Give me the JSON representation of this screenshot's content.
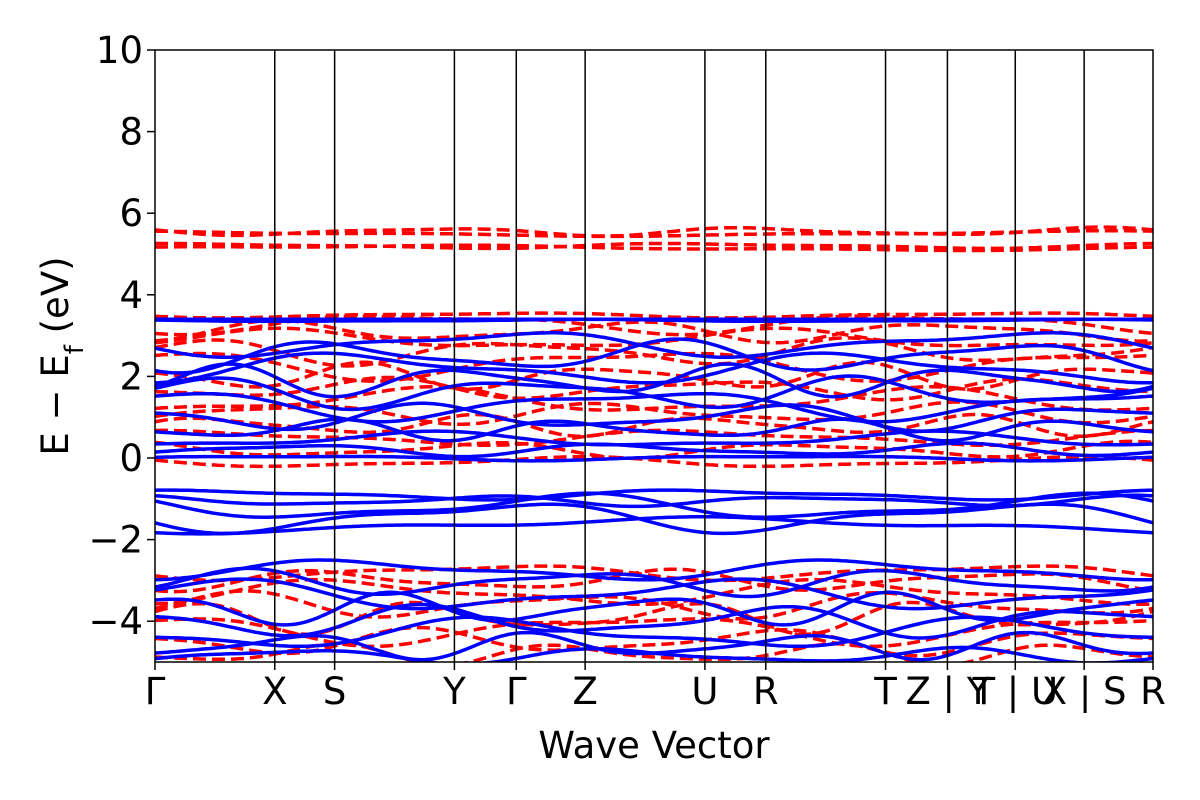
{
  "chart_data": {
    "type": "line",
    "title": "",
    "xlabel": "Wave Vector",
    "ylabel": {
      "main": "E − E",
      "sub": "f",
      "unit": " (eV)"
    },
    "ylim": [
      -5,
      10
    ],
    "grid": false,
    "legend": "none",
    "yticks": [
      {
        "value": 10,
        "label": "10"
      },
      {
        "value": 8,
        "label": "8"
      },
      {
        "value": 6,
        "label": "6"
      },
      {
        "value": 4,
        "label": "4"
      },
      {
        "value": 2,
        "label": "2"
      },
      {
        "value": 0,
        "label": "0"
      },
      {
        "value": -2,
        "label": "−2"
      },
      {
        "value": -4,
        "label": "−4"
      }
    ],
    "kpoints": [
      {
        "x": 0.0,
        "label": "Γ"
      },
      {
        "x": 0.12,
        "label": "X"
      },
      {
        "x": 0.18,
        "label": "S"
      },
      {
        "x": 0.3,
        "label": "Y"
      },
      {
        "x": 0.362,
        "label": "Γ"
      },
      {
        "x": 0.431,
        "label": "Z"
      },
      {
        "x": 0.551,
        "label": "U"
      },
      {
        "x": 0.612,
        "label": "R"
      },
      {
        "x": 0.732,
        "label": "T"
      },
      {
        "x": 0.794,
        "label": "Z | Y"
      },
      {
        "x": 0.862,
        "label": "T | U"
      },
      {
        "x": 0.931,
        "label": "X | S"
      },
      {
        "x": 1.0,
        "label": "R"
      }
    ],
    "series": [
      {
        "style": "dashed",
        "color": "#ff0000",
        "bands": [
          {
            "base": 5.15,
            "amp": 0.05,
            "freq": 1
          },
          {
            "base": 5.2,
            "amp": 0.05,
            "freq": 2
          },
          {
            "base": 5.5,
            "amp": 0.05,
            "freq": 1
          },
          {
            "base": 5.55,
            "amp": 0.08,
            "freq": 3
          },
          {
            "base": 3.5,
            "amp": 0.05,
            "freq": 2
          },
          {
            "base": 3.3,
            "amp": 0.2,
            "freq": 2
          },
          {
            "base": 3.1,
            "amp": 0.2,
            "freq": 3
          },
          {
            "base": 2.9,
            "amp": 0.2,
            "freq": 2
          },
          {
            "base": 2.6,
            "amp": 0.25,
            "freq": 3
          },
          {
            "base": 2.3,
            "amp": 0.3,
            "freq": 2
          },
          {
            "base": 2.0,
            "amp": 0.25,
            "freq": 4
          },
          {
            "base": 1.7,
            "amp": 0.2,
            "freq": 3
          },
          {
            "base": 1.4,
            "amp": 0.25,
            "freq": 2
          },
          {
            "base": 1.1,
            "amp": 0.2,
            "freq": 3
          },
          {
            "base": 0.8,
            "amp": 0.2,
            "freq": 4
          },
          {
            "base": 0.5,
            "amp": 0.15,
            "freq": 2
          },
          {
            "base": 0.2,
            "amp": 0.15,
            "freq": 3
          },
          {
            "base": -0.1,
            "amp": 0.1,
            "freq": 2
          },
          {
            "base": -2.8,
            "amp": 0.15,
            "freq": 2
          },
          {
            "base": -3.0,
            "amp": 0.2,
            "freq": 3
          },
          {
            "base": -3.3,
            "amp": 0.25,
            "freq": 2
          },
          {
            "base": -3.6,
            "amp": 0.25,
            "freq": 3
          },
          {
            "base": -3.9,
            "amp": 0.3,
            "freq": 4
          },
          {
            "base": -4.2,
            "amp": 0.3,
            "freq": 2
          },
          {
            "base": -4.5,
            "amp": 0.25,
            "freq": 3
          },
          {
            "base": -4.8,
            "amp": 0.2,
            "freq": 4
          }
        ]
      },
      {
        "style": "solid",
        "color": "#0000ff",
        "bands": [
          {
            "base": 3.4,
            "amp": 0.0,
            "freq": 1
          },
          {
            "base": 3.37,
            "amp": 0.02,
            "freq": 2
          },
          {
            "base": 2.8,
            "amp": 0.25,
            "freq": 2
          },
          {
            "base": 2.5,
            "amp": 0.3,
            "freq": 3
          },
          {
            "base": 2.2,
            "amp": 0.3,
            "freq": 2
          },
          {
            "base": 1.9,
            "amp": 0.3,
            "freq": 4
          },
          {
            "base": 1.6,
            "amp": 0.3,
            "freq": 3
          },
          {
            "base": 1.3,
            "amp": 0.3,
            "freq": 2
          },
          {
            "base": 1.0,
            "amp": 0.25,
            "freq": 3
          },
          {
            "base": 0.7,
            "amp": 0.2,
            "freq": 4
          },
          {
            "base": 0.45,
            "amp": 0.15,
            "freq": 2
          },
          {
            "base": 0.2,
            "amp": 0.12,
            "freq": 3
          },
          {
            "base": 0.0,
            "amp": 0.05,
            "freq": 2
          },
          {
            "base": -0.9,
            "amp": 0.1,
            "freq": 2
          },
          {
            "base": -1.05,
            "amp": 0.1,
            "freq": 3
          },
          {
            "base": -1.2,
            "amp": 0.25,
            "freq": 2
          },
          {
            "base": -1.45,
            "amp": 0.3,
            "freq": 2
          },
          {
            "base": -1.65,
            "amp": 0.15,
            "freq": 1
          },
          {
            "base": -2.75,
            "amp": 0.2,
            "freq": 2
          },
          {
            "base": -3.05,
            "amp": 0.25,
            "freq": 3
          },
          {
            "base": -3.35,
            "amp": 0.3,
            "freq": 2
          },
          {
            "base": -3.7,
            "amp": 0.3,
            "freq": 4
          },
          {
            "base": -4.0,
            "amp": 0.3,
            "freq": 3
          },
          {
            "base": -4.3,
            "amp": 0.3,
            "freq": 2
          },
          {
            "base": -4.6,
            "amp": 0.25,
            "freq": 4
          },
          {
            "base": -4.85,
            "amp": 0.15,
            "freq": 3
          }
        ]
      }
    ]
  }
}
